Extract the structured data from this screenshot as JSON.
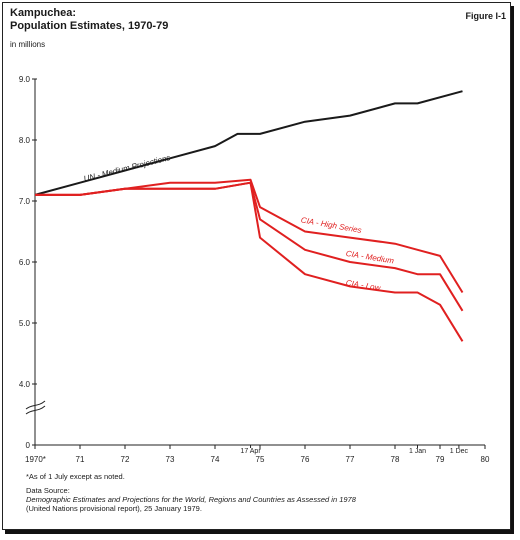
{
  "figure_label": "Figure I-1",
  "note": "*As of 1 July except as noted.",
  "source_heading": "Data Source:",
  "source_line1": "Demographic Estimates and Projections for the World, Regions and Countries as Assessed in 1978",
  "source_line2": "(United Nations provisional report), 25 January 1979.",
  "chart_data": {
    "type": "line",
    "title": "Kampuchea:",
    "subtitle": "Population Estimates, 1970-79",
    "ylabel": "in millions",
    "xlabel": "",
    "x_ticks": [
      1970,
      1971,
      1972,
      1973,
      1974,
      1975,
      1976,
      1977,
      1978,
      1979,
      1980
    ],
    "x_tick_labels": [
      "1970*",
      "71",
      "72",
      "73",
      "74",
      "75",
      "76",
      "77",
      "78",
      "79",
      "80"
    ],
    "y_ticks": [
      0,
      4,
      5,
      6,
      7,
      8,
      9
    ],
    "y_tick_labels": [
      "0",
      "4.0",
      "5.0",
      "6.0",
      "7.0",
      "8.0",
      "9.0"
    ],
    "ylim": [
      3.0,
      9.3
    ],
    "xlim": [
      1970,
      1980
    ],
    "axis_break": true,
    "annotations": [
      {
        "text": "17 Apr",
        "x": 1974.79
      },
      {
        "text": "1 Jan",
        "x": 1978.5
      },
      {
        "text": "1 Dec",
        "x": 1979.42
      }
    ],
    "colors": {
      "un": "#1a1a1a",
      "cia": "#e02020"
    },
    "series": [
      {
        "name": "UN - Medium Projections",
        "color": "#1a1a1a",
        "x": [
          1970,
          1971,
          1972,
          1973,
          1974,
          1974.5,
          1975,
          1976,
          1977,
          1978,
          1978.5,
          1979.5
        ],
        "values": [
          7.1,
          7.3,
          7.5,
          7.7,
          7.9,
          8.1,
          8.1,
          8.3,
          8.4,
          8.6,
          8.6,
          8.8
        ]
      },
      {
        "name": "CIA - High Series",
        "color": "#e02020",
        "x": [
          1970,
          1971,
          1972,
          1973,
          1974,
          1974.79,
          1975,
          1976,
          1977,
          1978,
          1978.5,
          1979,
          1979.5
        ],
        "values": [
          7.1,
          7.1,
          7.2,
          7.3,
          7.3,
          7.35,
          6.9,
          6.5,
          6.4,
          6.3,
          6.2,
          6.1,
          5.5
        ]
      },
      {
        "name": "CIA - Medium",
        "color": "#e02020",
        "x": [
          1970,
          1971,
          1972,
          1973,
          1974,
          1974.79,
          1975,
          1976,
          1977,
          1978,
          1978.5,
          1979,
          1979.5
        ],
        "values": [
          7.1,
          7.1,
          7.2,
          7.2,
          7.2,
          7.3,
          6.7,
          6.2,
          6.0,
          5.9,
          5.8,
          5.8,
          5.2
        ]
      },
      {
        "name": "CIA - Low",
        "color": "#e02020",
        "x": [
          1970,
          1971,
          1972,
          1973,
          1974,
          1974.79,
          1975,
          1976,
          1977,
          1978,
          1978.5,
          1979,
          1979.5
        ],
        "values": [
          7.1,
          7.1,
          7.2,
          7.2,
          7.2,
          7.3,
          6.4,
          5.8,
          5.6,
          5.5,
          5.5,
          5.3,
          4.7
        ]
      }
    ]
  }
}
